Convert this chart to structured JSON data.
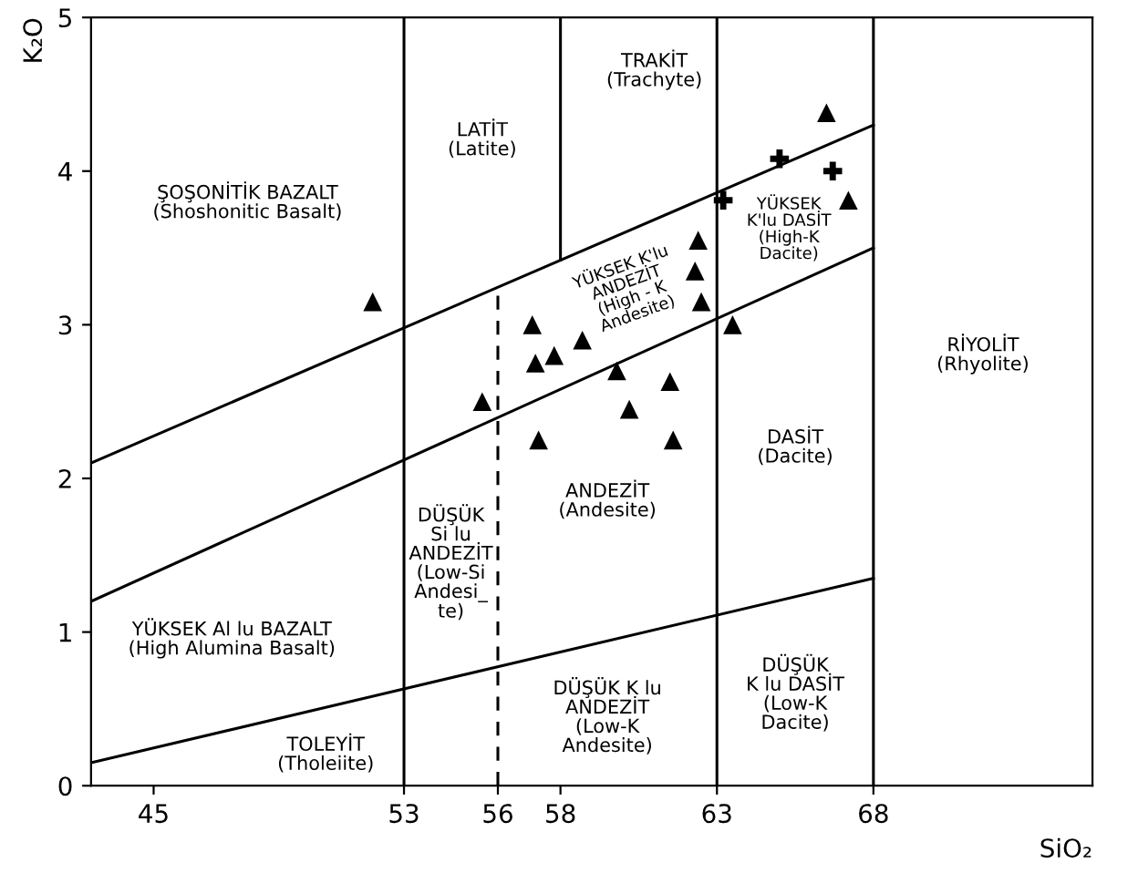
{
  "chart_data": {
    "type": "scatter",
    "xlabel": "SiO₂",
    "ylabel": "K₂O",
    "xlim": [
      43,
      75
    ],
    "ylim": [
      0,
      5
    ],
    "xticks": [
      45,
      53,
      56,
      58,
      63,
      68
    ],
    "yticks": [
      0,
      1,
      2,
      3,
      4,
      5
    ],
    "ref_lines": [
      {
        "axis": "x",
        "value": 53,
        "color": "#000000",
        "line_style": "solid"
      },
      {
        "axis": "x",
        "value": 63,
        "color": "#000000",
        "line_style": "solid"
      },
      {
        "axis": "x",
        "value": 68,
        "color": "#000000",
        "line_style": "solid"
      }
    ],
    "series": [
      {
        "type": "line",
        "color": "#000000",
        "marker": "none",
        "line_style": "solid",
        "x": [
          43,
          68
        ],
        "values": [
          2.1,
          4.3
        ]
      },
      {
        "type": "line",
        "color": "#000000",
        "marker": "none",
        "line_style": "solid",
        "x": [
          43,
          68
        ],
        "values": [
          1.2,
          3.5
        ]
      },
      {
        "type": "line",
        "color": "#000000",
        "marker": "none",
        "line_style": "solid",
        "x": [
          43,
          68
        ],
        "values": [
          0.15,
          1.35
        ]
      },
      {
        "type": "line",
        "color": "#000000",
        "marker": "none",
        "line_style": "dashed",
        "x": [
          56,
          56
        ],
        "values": [
          0,
          3.24
        ]
      },
      {
        "type": "line",
        "color": "#000000",
        "marker": "none",
        "line_style": "solid",
        "x": [
          58,
          58
        ],
        "values": [
          3.42,
          5
        ]
      },
      {
        "color": "#000000",
        "marker": "triangle",
        "x": [
          52.0,
          55.5,
          57.1,
          57.2,
          57.8,
          58.7,
          57.3,
          59.8,
          60.2,
          61.5,
          61.6,
          62.4,
          62.3,
          62.5,
          63.5,
          66.5,
          67.2
        ],
        "values": [
          3.15,
          2.5,
          3.0,
          2.75,
          2.8,
          2.9,
          2.25,
          2.7,
          2.45,
          2.63,
          2.25,
          3.55,
          3.35,
          3.15,
          3.0,
          4.38,
          3.81
        ]
      },
      {
        "color": "#000000",
        "marker": "cross",
        "x": [
          65.0,
          66.7,
          63.2
        ],
        "values": [
          4.08,
          4.0,
          3.81
        ]
      }
    ],
    "annotations": [
      "ŞOŞONİTİK BAZALT\n(Shoshonitic Basalt)",
      "LATİT\n(Latite)",
      "TRAKİT\n(Trachyte)",
      "YÜKSEK K'lu\nANDEZİT\n(High - K\nAndesite)",
      "YÜKSEK\nK'lu DASİT\n(High-K\nDacite)",
      "RİYOLİT\n(Rhyolite)",
      "DASİT\n(Dacite)",
      "ANDEZİT\n(Andesite)",
      "DÜŞÜK\nSi lu\nANDEZİT\n(Low-Si\nAndesi_\nte)",
      "YÜKSEK Al lu BAZALT\n(High Alumina Basalt)",
      "TOLEYİT\n(Tholeiite)",
      "DÜŞÜK K lu\nANDEZİT\n(Low-K\nAndesite)",
      "DÜŞÜK\nK lu DASİT\n(Low-K\nDacite)"
    ]
  }
}
